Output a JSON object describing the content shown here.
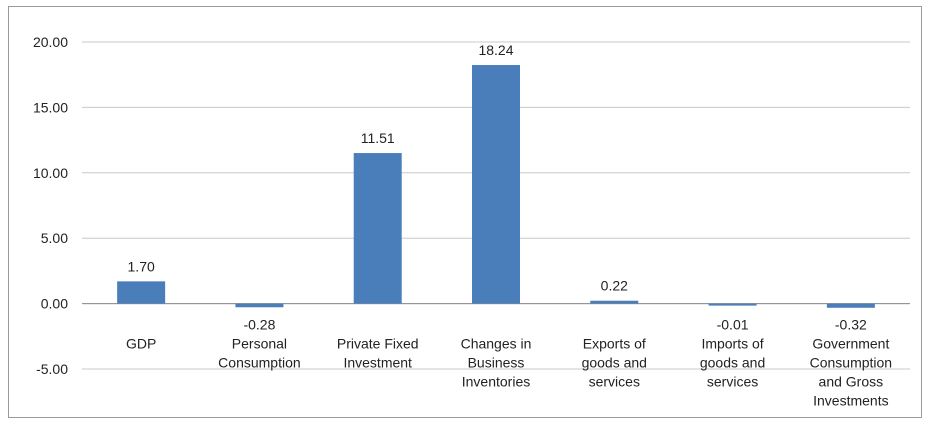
{
  "chart_data": {
    "type": "bar",
    "title": "",
    "xlabel": "",
    "ylabel": "",
    "ylim": [
      -5,
      20
    ],
    "yticks": [
      "20.00",
      "15.00",
      "10.00",
      "5.00",
      "0.00",
      "-5.00"
    ],
    "ytick_values": [
      20,
      15,
      10,
      5,
      0,
      -5
    ],
    "grid": true,
    "legend": "none",
    "bar_color": "#4a7ebb",
    "categories": [
      [
        "GDP"
      ],
      [
        "Personal",
        "Consumption"
      ],
      [
        "Private Fixed",
        "Investment"
      ],
      [
        "Changes in",
        "Business",
        "Inventories"
      ],
      [
        "Exports of",
        "goods and",
        "services"
      ],
      [
        "Imports of",
        "goods and",
        "services"
      ],
      [
        "Government",
        "Consumption",
        "and Gross",
        "Investments"
      ]
    ],
    "values": [
      1.7,
      -0.28,
      11.51,
      18.24,
      0.22,
      -0.01,
      -0.32
    ],
    "data_labels": [
      "1.70",
      "-0.28",
      "11.51",
      "18.24",
      "0.22",
      "-0.01",
      "-0.32"
    ]
  }
}
